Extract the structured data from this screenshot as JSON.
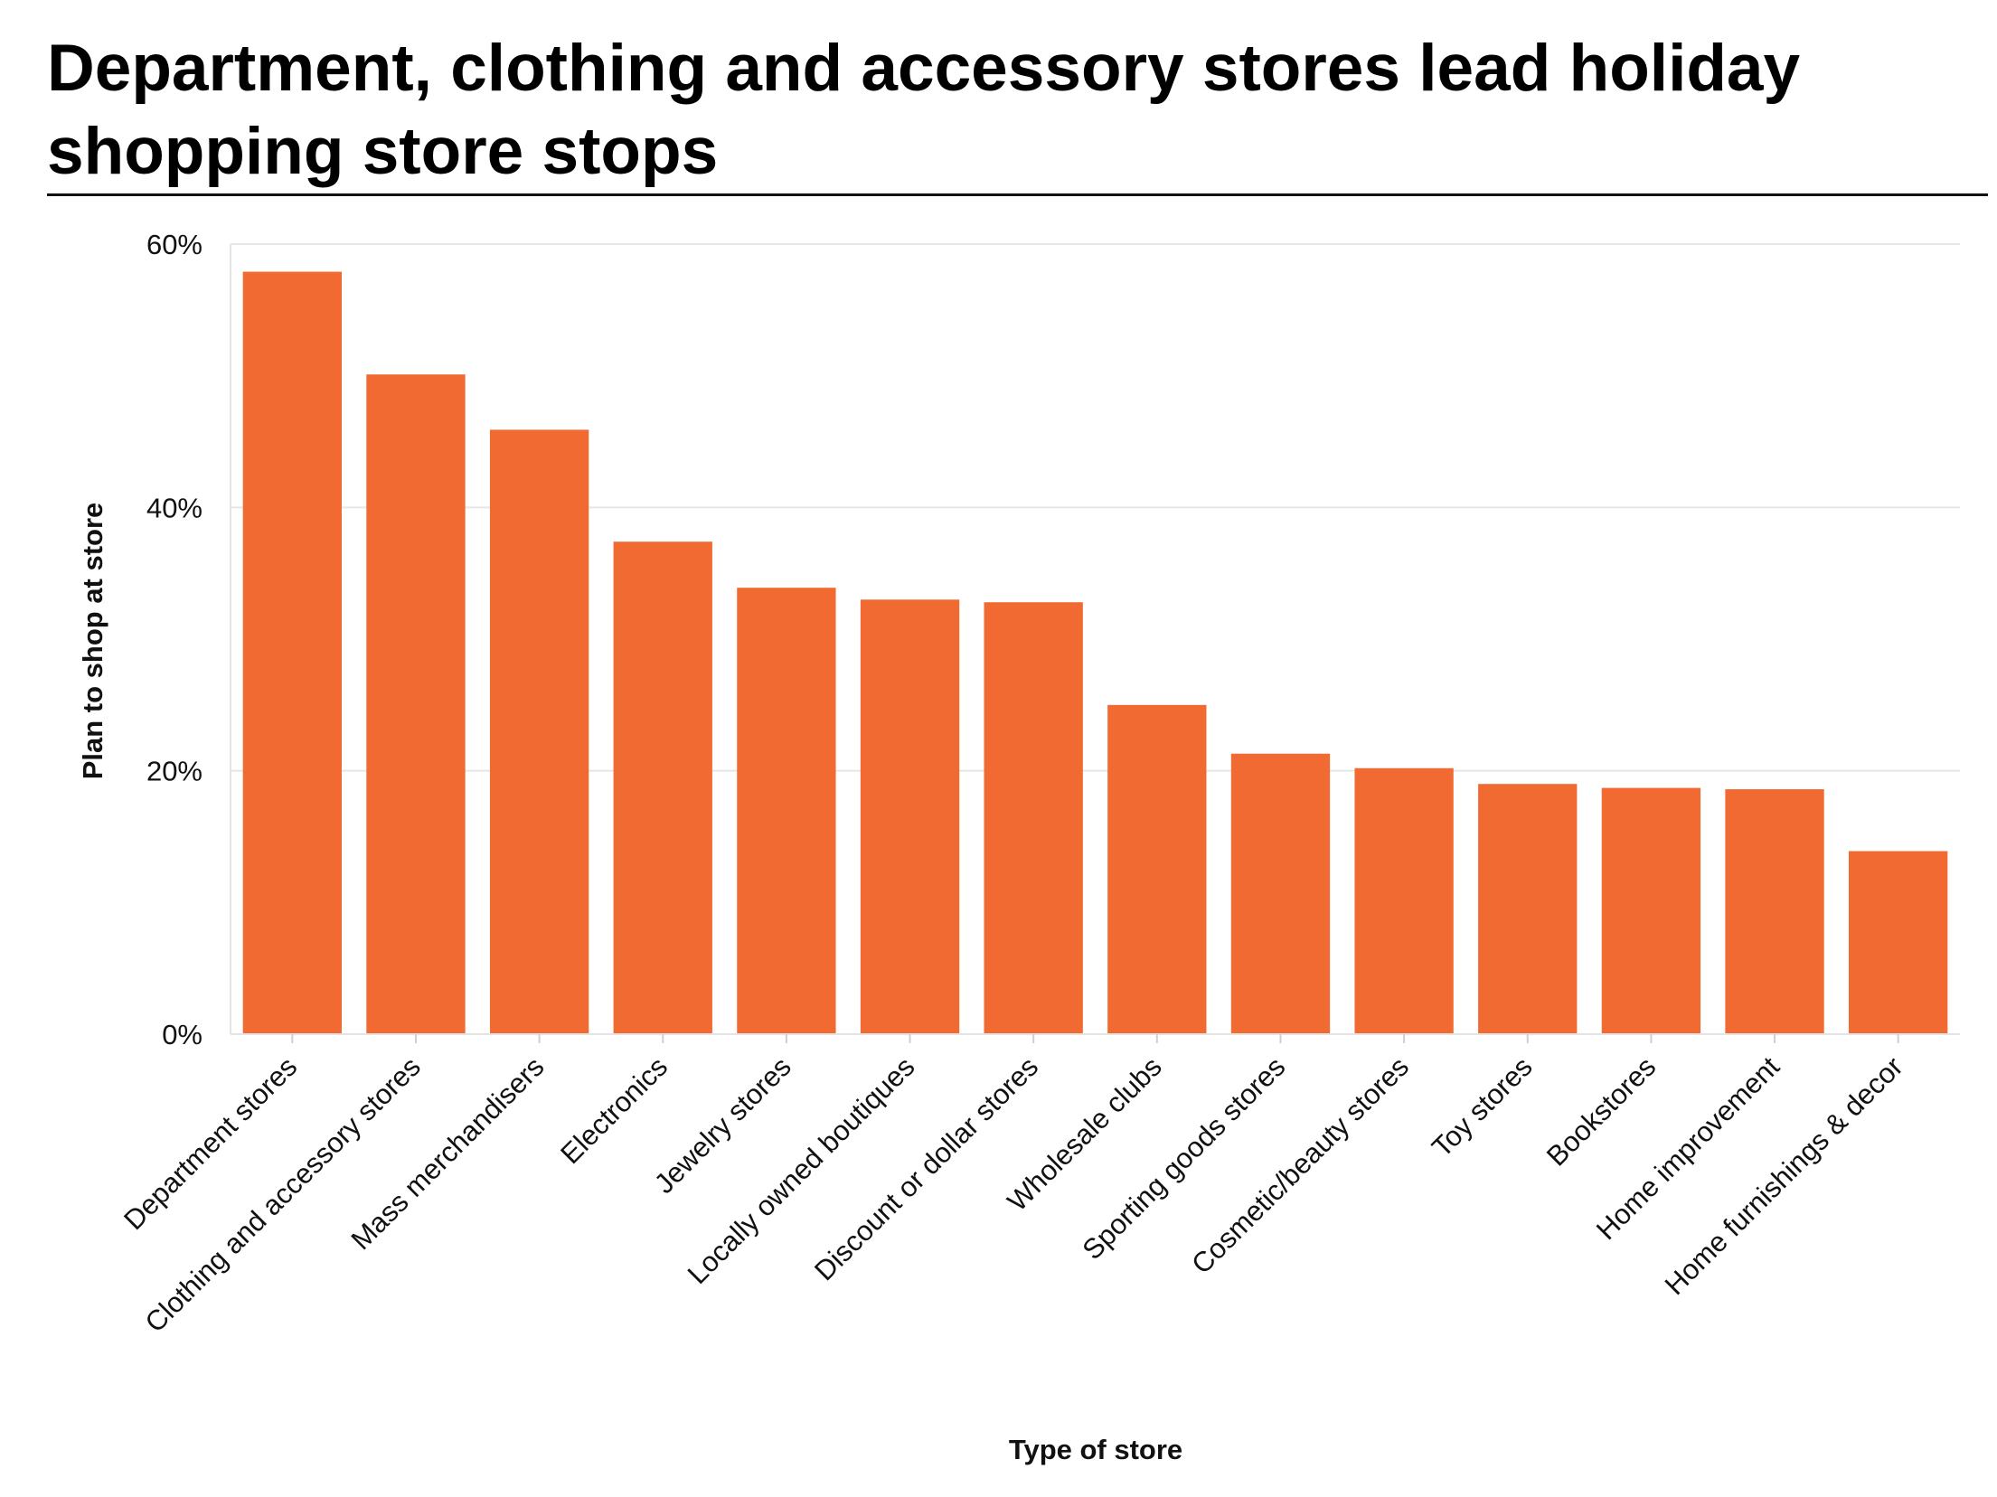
{
  "chart_data": {
    "type": "bar",
    "title": "Department, clothing and accessory stores lead holiday shopping store stops",
    "xlabel": "Type of store",
    "ylabel": "Plan to shop at store",
    "categories": [
      "Department stores",
      "Clothing and accessory stores",
      "Mass merchandisers",
      "Electronics",
      "Jewelry stores",
      "Locally owned boutiques",
      "Discount or dollar stores",
      "Wholesale clubs",
      "Sporting goods stores",
      "Cosmetic/beauty stores",
      "Toy stores",
      "Bookstores",
      "Home improvement",
      "Home furnishings & decor"
    ],
    "values": [
      57.9,
      50.1,
      45.9,
      37.4,
      33.9,
      33.0,
      32.8,
      25.0,
      21.3,
      20.2,
      19.0,
      18.7,
      18.6,
      13.9
    ],
    "ylim": [
      0,
      60
    ],
    "yticks": [
      {
        "value": 0,
        "label": "0%"
      },
      {
        "value": 20,
        "label": "20%"
      },
      {
        "value": 40,
        "label": "40%"
      },
      {
        "value": 60,
        "label": "60%"
      }
    ],
    "grid": true,
    "bar_color": "#F06A32",
    "grid_color": "#E6E6E6"
  }
}
